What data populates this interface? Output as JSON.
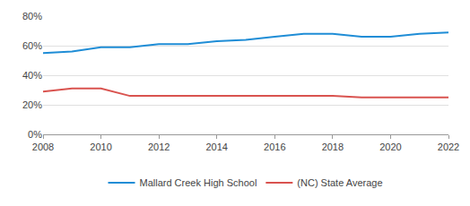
{
  "chart_data": {
    "type": "line",
    "x": [
      2008,
      2009,
      2010,
      2011,
      2012,
      2013,
      2014,
      2015,
      2016,
      2017,
      2018,
      2019,
      2020,
      2021,
      2022
    ],
    "series": [
      {
        "name": "Mallard Creek High School",
        "color": "#1f8dd6",
        "values": [
          55,
          56,
          59,
          59,
          61,
          61,
          63,
          64,
          66,
          68,
          68,
          66,
          66,
          68,
          69
        ]
      },
      {
        "name": "(NC) State Average",
        "color": "#d9534f",
        "values": [
          29,
          31,
          31,
          26,
          26,
          26,
          26,
          26,
          26,
          26,
          26,
          25,
          25,
          25,
          25
        ]
      }
    ],
    "xlim": [
      2008,
      2022
    ],
    "xticks": [
      2008,
      2010,
      2012,
      2014,
      2016,
      2018,
      2020,
      2022
    ],
    "ylim": [
      0,
      80
    ],
    "yticks": [
      {
        "value": 0,
        "label": "0%"
      },
      {
        "value": 20,
        "label": "20%"
      },
      {
        "value": 40,
        "label": "40%"
      },
      {
        "value": 60,
        "label": "60%"
      },
      {
        "value": 80,
        "label": "80%"
      }
    ],
    "grid": true,
    "legend": "bottom"
  }
}
